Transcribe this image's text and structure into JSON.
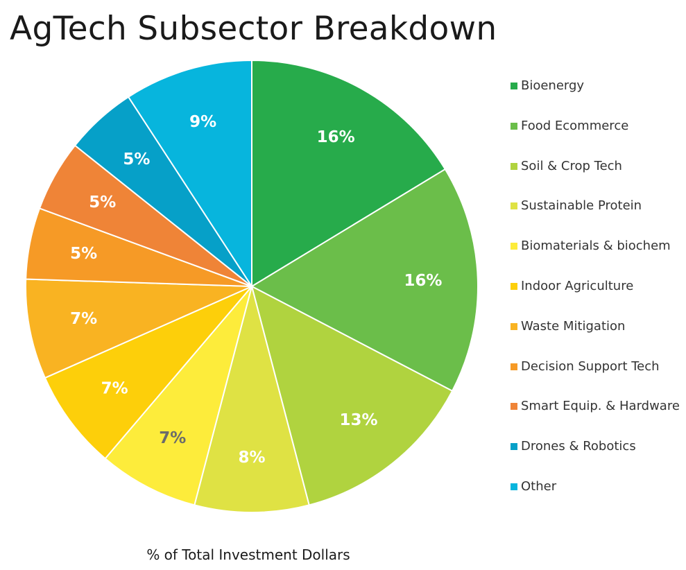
{
  "chart_data": {
    "type": "pie",
    "title": "AgTech Subsector Breakdown",
    "xlabel": "% of Total Investment Dollars",
    "legend_position": "right",
    "start_angle": "top",
    "direction": "clockwise",
    "slices": [
      {
        "name": "Bioenergy",
        "value": 16,
        "label": "16%",
        "color": "#27ab4b",
        "label_color": "#ffffff"
      },
      {
        "name": "Food Ecommerce",
        "value": 16,
        "label": "16%",
        "color": "#6bbe4a",
        "label_color": "#ffffff"
      },
      {
        "name": "Soil & Crop Tech",
        "value": 13,
        "label": "13%",
        "color": "#b0d33f",
        "label_color": "#ffffff"
      },
      {
        "name": "Sustainable Protein",
        "value": 8,
        "label": "8%",
        "color": "#dfe244",
        "label_color": "#ffffff"
      },
      {
        "name": "Biomaterials & biochem",
        "value": 7,
        "label": "7%",
        "color": "#fdec3b",
        "label_color": "#6b6b6b"
      },
      {
        "name": "Indoor Agriculture",
        "value": 7,
        "label": "7%",
        "color": "#fdcf0a",
        "label_color": "#ffffff"
      },
      {
        "name": "Waste Mitigation",
        "value": 7,
        "label": "7%",
        "color": "#f9b322",
        "label_color": "#ffffff"
      },
      {
        "name": "Decision Support Tech",
        "value": 5,
        "label": "5%",
        "color": "#f69a26",
        "label_color": "#ffffff"
      },
      {
        "name": "Smart Equip. & Hardware",
        "value": 5,
        "label": "5%",
        "color": "#ef8437",
        "label_color": "#ffffff"
      },
      {
        "name": "Drones & Robotics",
        "value": 5,
        "label": "5%",
        "color": "#06a0c8",
        "label_color": "#ffffff"
      },
      {
        "name": "Other",
        "value": 9,
        "label": "9%",
        "color": "#07b5dd",
        "label_color": "#ffffff"
      }
    ]
  }
}
